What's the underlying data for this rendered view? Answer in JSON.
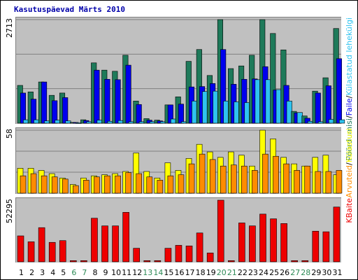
{
  "chart_data": {
    "type": "bar",
    "title": "Kasutuspäevad Märts 2010",
    "categories": [
      "1",
      "2",
      "3",
      "4",
      "5",
      "6",
      "7",
      "8",
      "9",
      "10",
      "11",
      "12",
      "13",
      "14",
      "15",
      "16",
      "17",
      "18",
      "19",
      "20",
      "21",
      "22",
      "23",
      "24",
      "25",
      "26",
      "27",
      "28",
      "29",
      "30",
      "31"
    ],
    "weekend_days": [
      "6",
      "7",
      "13",
      "14",
      "20",
      "21",
      "27",
      "28"
    ],
    "colors": {
      "weekday_label": "#000000",
      "weekend_label": "#2e8b57",
      "background": "#c0c0c0",
      "grid": "#808080",
      "title": "#0000aa",
      "hits": "#1e7a5a",
      "files": "#0000ee",
      "pages": "#2fc3f0",
      "visits": "#ffff00",
      "sites": "#ff8c00",
      "kbytes": "#ee0000"
    },
    "panels": [
      {
        "ymax_label": "2713",
        "ylim": [
          0,
          2713
        ],
        "grid": true,
        "legend": [
          {
            "text": "Pöördumisi",
            "color": "#1e7a5a"
          },
          {
            "text": "/",
            "color": "#000000"
          },
          {
            "text": "Faile",
            "color": "#0000ee"
          },
          {
            "text": "/",
            "color": "#000000"
          },
          {
            "text": "Külastatud lehekülgi",
            "color": "#2fc3f0"
          }
        ],
        "legend_placement": "right",
        "series": [
          {
            "name": "Pöördumisi",
            "key": "hits",
            "values": [
              990,
              820,
              1080,
              730,
              790,
              20,
              90,
              1580,
              1390,
              1360,
              1780,
              580,
              120,
              80,
              480,
              690,
              1620,
              1930,
              1250,
              2713,
              1430,
              1500,
              1780,
              2713,
              2350,
              1920,
              310,
              190,
              840,
              1190,
              2480
            ]
          },
          {
            "name": "Faile",
            "key": "files",
            "values": [
              790,
              630,
              1080,
              590,
              670,
              20,
              70,
              1390,
              1150,
              1140,
              1520,
              490,
              80,
              60,
              480,
              500,
              950,
              960,
              1040,
              1930,
              1020,
              1150,
              1160,
              1480,
              870,
              990,
              270,
              130,
              790,
              980,
              1690
            ]
          },
          {
            "name": "Külastatud lehekülgi",
            "key": "pages",
            "values": [
              90,
              90,
              60,
              80,
              60,
              10,
              40,
              80,
              50,
              70,
              40,
              40,
              40,
              40,
              110,
              40,
              580,
              830,
              840,
              580,
              560,
              540,
              1140,
              1140,
              880,
              580,
              280,
              50,
              40,
              100,
              90
            ]
          }
        ]
      },
      {
        "ymax_label": "58",
        "ylim": [
          0,
          58
        ],
        "grid": true,
        "legend": [
          {
            "text": "Arvuteid",
            "color": "#ff8c00"
          },
          {
            "text": "/",
            "color": "#000000"
          },
          {
            "text": "Külastusi",
            "color": "#ffff00"
          }
        ],
        "legend_placement": "right",
        "series": [
          {
            "name": "Külastusi",
            "key": "visits",
            "values": [
              23,
              23,
              21,
              18,
              14,
              8,
              14,
              16,
              17,
              18,
              20,
              37,
              20,
              14,
              28,
              21,
              32,
              45,
              38,
              33,
              38,
              35,
              25,
              58,
              50,
              33,
              27,
              25,
              33,
              35,
              17
            ]
          },
          {
            "name": "Arvuteid",
            "key": "sites",
            "values": [
              16,
              18,
              16,
              15,
              13,
              7,
              12,
              15,
              16,
              16,
              19,
              18,
              15,
              12,
              16,
              17,
              27,
              36,
              31,
              25,
              26,
              25,
              21,
              36,
              34,
              27,
              21,
              25,
              20,
              20,
              21
            ]
          }
        ]
      },
      {
        "ymax_label": "52295",
        "ylim": [
          0,
          52295
        ],
        "grid": false,
        "legend": [
          {
            "text": "KBaite",
            "color": "#ee0000"
          }
        ],
        "legend_placement": "right",
        "series": [
          {
            "name": "KBaite",
            "key": "kbytes",
            "values": [
              22000,
              17000,
              29000,
              16500,
              18000,
              1000,
              1000,
              37000,
              30500,
              30500,
              42000,
              11500,
              1000,
              1000,
              11500,
              14000,
              13500,
              24500,
              7500,
              52295,
              1000,
              33000,
              30500,
              40500,
              36500,
              32500,
              1000,
              1000,
              26000,
              25500,
              46500
            ]
          }
        ]
      }
    ]
  }
}
